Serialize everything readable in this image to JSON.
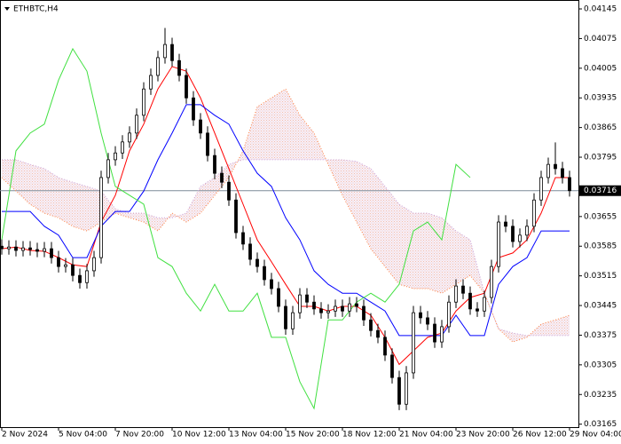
{
  "chart_data": {
    "type": "candlestick",
    "title": "ETHBTC,H4",
    "xlim": [
      -0.5,
      162.5
    ],
    "ylim": [
      0.03158,
      0.04166
    ],
    "xticks": [
      {
        "value": 0,
        "label": "2 Nov 2024"
      },
      {
        "value": 16,
        "label": "5 Nov 04:00"
      },
      {
        "value": 32,
        "label": "7 Nov 20:00"
      },
      {
        "value": 48,
        "label": "10 Nov 12:00"
      },
      {
        "value": 64,
        "label": "13 Nov 04:00"
      },
      {
        "value": 80,
        "label": "15 Nov 20:00"
      },
      {
        "value": 96,
        "label": "18 Nov 12:00"
      },
      {
        "value": 112,
        "label": "21 Nov 04:00"
      },
      {
        "value": 128,
        "label": "23 Nov 20:00"
      },
      {
        "value": 144,
        "label": "26 Nov 12:00"
      },
      {
        "value": 160,
        "label": "29 Nov 04:00"
      }
    ],
    "yticks": [
      0.04145,
      0.04075,
      0.04005,
      0.03935,
      0.03865,
      0.03795,
      0.03655,
      0.03585,
      0.03515,
      0.03445,
      0.03375,
      0.03305,
      0.03235,
      0.03165
    ],
    "last_price": 0.03716,
    "candle_color": "#000000",
    "candles": {
      "x": [
        0,
        2,
        4,
        6,
        8,
        10,
        12,
        14,
        16,
        18,
        20,
        22,
        24,
        26,
        28,
        30,
        32,
        34,
        36,
        38,
        40,
        42,
        44,
        46,
        48,
        50,
        52,
        54,
        56,
        58,
        60,
        62,
        64,
        66,
        68,
        70,
        72,
        74,
        76,
        78,
        80,
        82,
        84,
        86,
        88,
        90,
        92,
        94,
        96,
        98,
        100,
        102,
        104,
        106,
        108,
        110,
        112,
        114,
        116,
        118,
        120,
        122,
        124,
        126,
        128,
        130,
        132,
        134,
        136,
        138,
        140,
        142,
        144,
        146,
        148,
        150,
        152,
        154,
        156,
        158,
        160
      ],
      "open": [
        0.03585,
        0.03579,
        0.03583,
        0.03575,
        0.03581,
        0.03577,
        0.03573,
        0.03579,
        0.03558,
        0.03537,
        0.03541,
        0.03516,
        0.03499,
        0.03527,
        0.03558,
        0.03747,
        0.03789,
        0.03805,
        0.03831,
        0.03852,
        0.03894,
        0.03956,
        0.03988,
        0.0403,
        0.04061,
        0.04023,
        0.03988,
        0.03935,
        0.03883,
        0.03852,
        0.03799,
        0.03757,
        0.03736,
        0.03694,
        0.03617,
        0.0359,
        0.03554,
        0.03537,
        0.03506,
        0.03485,
        0.03443,
        0.0339,
        0.03428,
        0.0347,
        0.03453,
        0.03437,
        0.03428,
        0.03432,
        0.03443,
        0.03432,
        0.03449,
        0.03443,
        0.03411,
        0.03386,
        0.0337,
        0.03328,
        0.03275,
        0.03212,
        0.03286,
        0.03428,
        0.03416,
        0.03401,
        0.03359,
        0.03395,
        0.03453,
        0.03491,
        0.03474,
        0.03437,
        0.03432,
        0.03464,
        0.03537,
        0.03642,
        0.03632,
        0.03596,
        0.03611,
        0.03632,
        0.03694,
        0.03747,
        0.03778,
        0.03768,
        0.03747
      ],
      "high": [
        0.03601,
        0.03599,
        0.03599,
        0.03597,
        0.03597,
        0.03593,
        0.03595,
        0.03595,
        0.03574,
        0.03557,
        0.03557,
        0.03532,
        0.03543,
        0.03574,
        0.03763,
        0.03805,
        0.03821,
        0.03847,
        0.03868,
        0.0391,
        0.03972,
        0.04004,
        0.04046,
        0.041,
        0.04077,
        0.04039,
        0.04004,
        0.03951,
        0.03899,
        0.03868,
        0.03815,
        0.03773,
        0.03752,
        0.0371,
        0.03633,
        0.03606,
        0.0357,
        0.03553,
        0.03522,
        0.03501,
        0.03459,
        0.03444,
        0.03486,
        0.03486,
        0.03469,
        0.03453,
        0.03448,
        0.03459,
        0.03459,
        0.03465,
        0.03465,
        0.03459,
        0.03427,
        0.03402,
        0.03386,
        0.03344,
        0.03291,
        0.03302,
        0.03444,
        0.03444,
        0.03432,
        0.03417,
        0.03411,
        0.03469,
        0.03507,
        0.03507,
        0.0349,
        0.03453,
        0.0348,
        0.03553,
        0.03658,
        0.03658,
        0.03648,
        0.03627,
        0.03648,
        0.0371,
        0.03763,
        0.03794,
        0.0383,
        0.03784,
        0.03763
      ],
      "low": [
        0.03565,
        0.03565,
        0.03561,
        0.03561,
        0.03563,
        0.03559,
        0.03559,
        0.03544,
        0.03523,
        0.03523,
        0.03502,
        0.03485,
        0.03485,
        0.03513,
        0.03544,
        0.03733,
        0.03775,
        0.03791,
        0.03817,
        0.03838,
        0.0388,
        0.03942,
        0.03974,
        0.04016,
        0.04009,
        0.03974,
        0.03921,
        0.03869,
        0.03838,
        0.03785,
        0.03743,
        0.03722,
        0.0368,
        0.03603,
        0.03576,
        0.0354,
        0.03523,
        0.03492,
        0.03471,
        0.03429,
        0.03376,
        0.03376,
        0.03414,
        0.03439,
        0.03423,
        0.03414,
        0.03414,
        0.03418,
        0.03418,
        0.03418,
        0.03429,
        0.03397,
        0.03372,
        0.03356,
        0.03314,
        0.03261,
        0.03198,
        0.03198,
        0.03272,
        0.03402,
        0.03387,
        0.03345,
        0.03345,
        0.03381,
        0.03439,
        0.0346,
        0.03423,
        0.03418,
        0.03418,
        0.0345,
        0.03523,
        0.03618,
        0.03582,
        0.03582,
        0.03597,
        0.03618,
        0.0368,
        0.03733,
        0.03754,
        0.03733,
        0.03702
      ],
      "close": [
        0.03579,
        0.03583,
        0.03575,
        0.03581,
        0.03577,
        0.03573,
        0.03579,
        0.03558,
        0.03537,
        0.03541,
        0.03516,
        0.03499,
        0.03527,
        0.03558,
        0.03747,
        0.03789,
        0.03805,
        0.03831,
        0.03852,
        0.03894,
        0.03956,
        0.03988,
        0.0403,
        0.04061,
        0.04023,
        0.03988,
        0.03935,
        0.03883,
        0.03852,
        0.03799,
        0.03757,
        0.03736,
        0.03694,
        0.03617,
        0.0359,
        0.03554,
        0.03537,
        0.03506,
        0.03485,
        0.03443,
        0.0339,
        0.03428,
        0.0347,
        0.03453,
        0.03437,
        0.03428,
        0.03432,
        0.03443,
        0.03432,
        0.03449,
        0.03443,
        0.03411,
        0.03386,
        0.0337,
        0.03328,
        0.03275,
        0.03212,
        0.03286,
        0.03428,
        0.03416,
        0.03401,
        0.03359,
        0.03395,
        0.03453,
        0.03491,
        0.03474,
        0.03437,
        0.03432,
        0.03464,
        0.03537,
        0.03642,
        0.03632,
        0.03596,
        0.03611,
        0.03632,
        0.03694,
        0.03747,
        0.03778,
        0.03768,
        0.03747,
        0.03716
      ]
    },
    "lines_x": [
      0,
      4,
      8,
      12,
      16,
      20,
      24,
      28,
      32,
      36,
      40,
      44,
      48,
      52,
      56,
      60,
      64,
      68,
      72,
      76,
      80,
      84,
      88,
      92,
      96,
      100,
      104,
      108,
      112,
      116,
      120,
      124,
      128,
      132,
      136,
      140,
      144,
      148,
      152,
      156,
      160
    ],
    "cloud_color": "#f4d4dc",
    "lines": [
      {
        "color": "#ff8040",
        "style": "dotted",
        "values": [
          0.03747,
          0.03715,
          0.03684,
          0.03663,
          0.03652,
          0.03632,
          0.03621,
          0.03642,
          0.03663,
          0.03652,
          0.03642,
          0.03621,
          0.03663,
          0.03642,
          0.03663,
          0.03705,
          0.03747,
          0.0381,
          0.03914,
          0.03935,
          0.03956,
          0.03894,
          0.03852,
          0.03778,
          0.03705,
          0.03642,
          0.03579,
          0.03537,
          0.03495,
          0.03485,
          0.03485,
          0.03474,
          0.03495,
          0.03516,
          0.03474,
          0.0339,
          0.03359,
          0.0337,
          0.03401,
          0.03411,
          0.03422
        ]
      },
      {
        "color": "#c8a0d8",
        "style": "dotted",
        "values": [
          0.03789,
          0.03789,
          0.03778,
          0.03768,
          0.03747,
          0.03736,
          0.03726,
          0.03715,
          0.03673,
          0.03663,
          0.03663,
          0.03652,
          0.03652,
          0.03663,
          0.03726,
          0.03747,
          0.03778,
          0.03789,
          0.03789,
          0.03789,
          0.03789,
          0.03789,
          0.03789,
          0.03789,
          0.03789,
          0.03785,
          0.03768,
          0.03726,
          0.03684,
          0.03663,
          0.03663,
          0.03652,
          0.03621,
          0.036,
          0.03474,
          0.0339,
          0.0338,
          0.03374,
          0.03374,
          0.03374,
          0.03374
        ]
      },
      {
        "color": "#ff0000",
        "style": "solid",
        "values": [
          0.03579,
          0.03583,
          0.03575,
          0.03573,
          0.03558,
          0.03541,
          0.03537,
          0.03642,
          0.03705,
          0.0381,
          0.03873,
          0.03956,
          0.04009,
          0.03998,
          0.03935,
          0.03852,
          0.03768,
          0.03684,
          0.036,
          0.03548,
          0.03495,
          0.03443,
          0.03443,
          0.03432,
          0.03443,
          0.03443,
          0.03422,
          0.0337,
          0.03306,
          0.03338,
          0.0337,
          0.0338,
          0.03432,
          0.03464,
          0.03474,
          0.03558,
          0.03569,
          0.036,
          0.03663,
          0.03747,
          0.03747
        ]
      },
      {
        "color": "#0000ff",
        "style": "solid",
        "values": [
          0.03667,
          0.03667,
          0.03667,
          0.03632,
          0.03611,
          0.03558,
          0.03558,
          0.03632,
          0.03667,
          0.03667,
          0.03715,
          0.03789,
          0.03852,
          0.03919,
          0.03919,
          0.03894,
          0.03873,
          0.0381,
          0.03757,
          0.03726,
          0.03652,
          0.036,
          0.03527,
          0.03495,
          0.03474,
          0.03474,
          0.03453,
          0.03432,
          0.03374,
          0.03374,
          0.03374,
          0.03374,
          0.03422,
          0.03374,
          0.03374,
          0.03495,
          0.03537,
          0.03558,
          0.03621,
          0.03621,
          0.03621
        ]
      },
      {
        "color": "#40e040",
        "style": "solid",
        "values": [
          0.036,
          0.0381,
          0.03852,
          0.03873,
          0.03977,
          0.04051,
          0.03998,
          0.03852,
          0.03726,
          0.03705,
          0.03684,
          0.03558,
          0.03537,
          0.03474,
          0.03432,
          0.03495,
          0.03432,
          0.03432,
          0.03474,
          0.0337,
          0.0337,
          0.03265,
          0.03202,
          0.03411,
          0.03411,
          0.03453,
          0.03474,
          0.03453,
          0.03495,
          0.03621,
          0.03642,
          0.036,
          0.03778,
          0.03747,
          null,
          null,
          null,
          null,
          null,
          null,
          null
        ]
      }
    ]
  }
}
